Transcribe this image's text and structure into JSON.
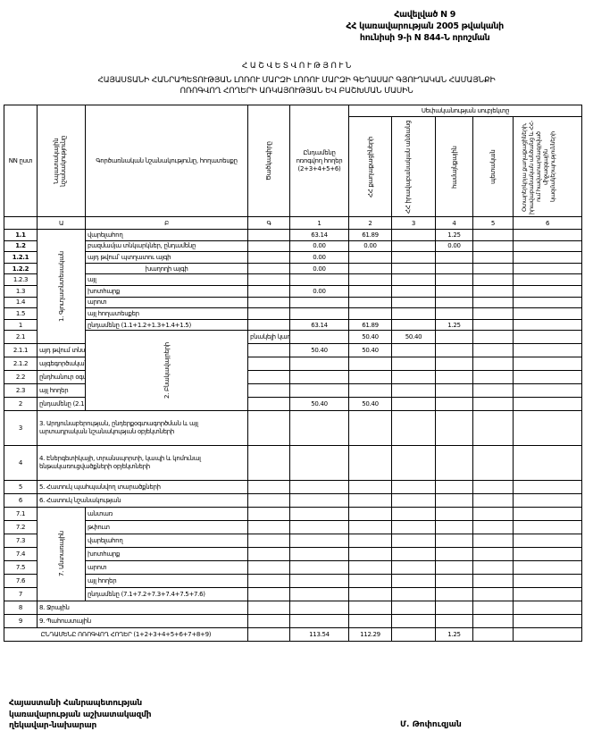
{
  "header": {
    "line1": "Հավելված N 9",
    "line2": "ՀՀ կառավարության 2005 թվականի",
    "line3": "հունիսի 9-ի N 844-Ն որոշման"
  },
  "title": {
    "main": "Հ Ա Շ Վ Ե Տ Վ Ո Ւ Թ Յ Ո Ւ Ն",
    "sub1": "ՀԱՅԱՍՏԱՆԻ ՀԱՆՐԱՊԵՏՈՒԹՅԱՆ ԼՈՌՈՒ ՄԱՐԶԻ ԼՈՌՈՒ ՄԱՐԶԻ ԳԵՂԱՍԱՐ ԳՅՈՒՂԱԿԱՆ ՀԱՄԱՅՆՔԻ",
    "sub2": "ՈՌՈԳՎՈՂ ՀՈՂԵՐԻ ԱՌԿԱՅՈՒԹՅԱՆ ԵՎ ԲԱՇԽՄԱՆ ՄԱՍԻՆ"
  },
  "columns": {
    "nn": "NN ըստ",
    "purpose": "Նպատակային նշանակությունը",
    "function": "Գործառնական նշանակությունը, հողատեսքը",
    "code": "Ծածկագիրը",
    "total": "Ընդամենը ոռոգվող հողեր (2+3+4+5+6)",
    "owners_group": "Սեփականության սուբյեկտը",
    "owners": [
      "ՀՀ քաղաքացիների",
      "ՀՀ իրավաբանական անձանց",
      "համայնքային",
      "պետական",
      "Օտարերկրյա քաղաքացիների, իրավաբանական անձանց և ՀՀ-ում հավատարմագրված միջազգային կազմակերպությունների"
    ],
    "index": [
      "",
      "Ա",
      "Բ",
      "Գ",
      "1",
      "2",
      "3",
      "4",
      "5",
      "6"
    ]
  },
  "rows": [
    {
      "nn": "1.1",
      "group": "1. Գյուղատնտեսական",
      "rowspan": 10,
      "label": "վարելահող",
      "v": [
        "63.14",
        "61.89",
        "",
        "1.25",
        "",
        ""
      ]
    },
    {
      "nn": "1.2",
      "label": "բազմամյա տնկարկներ, ընդամենը",
      "v": [
        "0.00",
        "0.00",
        "",
        "0.00",
        "",
        ""
      ]
    },
    {
      "nn": "1.2.1",
      "label": "այդ թվում՝          պտղատու այգի",
      "v": [
        "0.00",
        "",
        "",
        "",
        "",
        ""
      ]
    },
    {
      "nn": "1.2.2",
      "label": "խաղողի այգի",
      "indent": true,
      "v": [
        "0.00",
        "",
        "",
        "",
        "",
        ""
      ]
    },
    {
      "nn": "1.2.3",
      "label": "այլ",
      "v": [
        "",
        "",
        "",
        "",
        "",
        ""
      ]
    },
    {
      "nn": "1.3",
      "label": "խոտհարք",
      "v": [
        "0.00",
        "",
        "",
        "",
        "",
        ""
      ]
    },
    {
      "nn": "1.4",
      "label": "արոտ",
      "v": [
        "",
        "",
        "",
        "",
        "",
        ""
      ]
    },
    {
      "nn": "1.5",
      "label": "այլ հողատեսքեր",
      "v": [
        "",
        "",
        "",
        "",
        "",
        ""
      ]
    },
    {
      "nn": "1",
      "label": "ընդամենը (1.1+1.2+1.3+1.4+1.5)",
      "v": [
        "63.14",
        "61.89",
        "",
        "1.25",
        "",
        ""
      ]
    },
    {
      "nn": "2.1",
      "group": "2. Բնակավայրերի",
      "rowspan": 6,
      "label": "բնակելի կառուցապատման",
      "v": [
        "50.40",
        "50.40",
        "",
        "",
        "",
        ""
      ]
    },
    {
      "nn": "2.1.1",
      "label": "այդ թվում տնամերձ հողեր",
      "v": [
        "50.40",
        "50.40",
        "",
        "",
        "",
        ""
      ]
    },
    {
      "nn": "2.1.2",
      "label": "այգեգործական (ամառանոցային)",
      "v": [
        "",
        "",
        "",
        "",
        "",
        ""
      ]
    },
    {
      "nn": "2.2",
      "label": "ընդհանուր օգտագործման",
      "v": [
        "",
        "",
        "",
        "",
        "",
        ""
      ]
    },
    {
      "nn": "2.3",
      "label": "այլ հողեր",
      "v": [
        "",
        "",
        "",
        "",
        "",
        ""
      ]
    },
    {
      "nn": "2",
      "label": "ընդամենը (2.1+2.2+2.3)",
      "v": [
        "50.40",
        "50.40",
        "",
        "",
        "",
        ""
      ]
    },
    {
      "nn": "3",
      "span": true,
      "tall": true,
      "label": "3. Արդյունաբերության, ընդերքօգտագործման և այլ արտադրական նշանակության օբյեկտների",
      "v": [
        "",
        "",
        "",
        "",
        "",
        ""
      ]
    },
    {
      "nn": "4",
      "span": true,
      "tall": true,
      "label": "4. Էներգետիկայի, տրանսպորտի, կապի և կոմունալ ենթակառուցվածքների օբյեկտների",
      "v": [
        "",
        "",
        "",
        "",
        "",
        ""
      ]
    },
    {
      "nn": "5",
      "span": true,
      "label": "5. Հատուկ պահպանվող տարածքների",
      "v": [
        "",
        "",
        "",
        "",
        "",
        ""
      ]
    },
    {
      "nn": "6",
      "span": true,
      "label": "6. Հատուկ նշանակության",
      "v": [
        "",
        "",
        "",
        "",
        "",
        ""
      ]
    },
    {
      "nn": "7.1",
      "group": "7. Անտառային",
      "rowspan": 7,
      "label": "անտառ",
      "v": [
        "",
        "",
        "",
        "",
        "",
        ""
      ]
    },
    {
      "nn": "7.2",
      "label": "թփուտ",
      "v": [
        "",
        "",
        "",
        "",
        "",
        ""
      ]
    },
    {
      "nn": "7.3",
      "label": "վարելահող",
      "v": [
        "",
        "",
        "",
        "",
        "",
        ""
      ]
    },
    {
      "nn": "7.4",
      "label": "խոտհարք",
      "v": [
        "",
        "",
        "",
        "",
        "",
        ""
      ]
    },
    {
      "nn": "7.5",
      "label": "արոտ",
      "v": [
        "",
        "",
        "",
        "",
        "",
        ""
      ]
    },
    {
      "nn": "7.6",
      "label": "այլ հողեր",
      "v": [
        "",
        "",
        "",
        "",
        "",
        ""
      ]
    },
    {
      "nn": "7",
      "label": "ընդամենը (7.1+7.2+7.3+7.4+7.5+7.6)",
      "v": [
        "",
        "",
        "",
        "",
        "",
        ""
      ]
    },
    {
      "nn": "8",
      "span": true,
      "label": "8. Ջրային",
      "v": [
        "",
        "",
        "",
        "",
        "",
        ""
      ]
    },
    {
      "nn": "9",
      "span": true,
      "label": "9. Պահուստային",
      "v": [
        "",
        "",
        "",
        "",
        "",
        ""
      ]
    },
    {
      "total": true,
      "label": "ԸՆԴԱՄԵՆԸ ՈՌՈԳՎՈՂ ՀՈՂԵՐ (1+2+3+4+5+6+7+8+9)",
      "v": [
        "113.54",
        "112.29",
        "",
        "1.25",
        "",
        ""
      ]
    }
  ],
  "footer": {
    "line1": "Հայաստանի Հանրապետության",
    "line2": "կառավարության աշխատակազմի",
    "line3": "ղեկավար-նախարար",
    "signatory": "Մ. Թոփուզյան"
  }
}
